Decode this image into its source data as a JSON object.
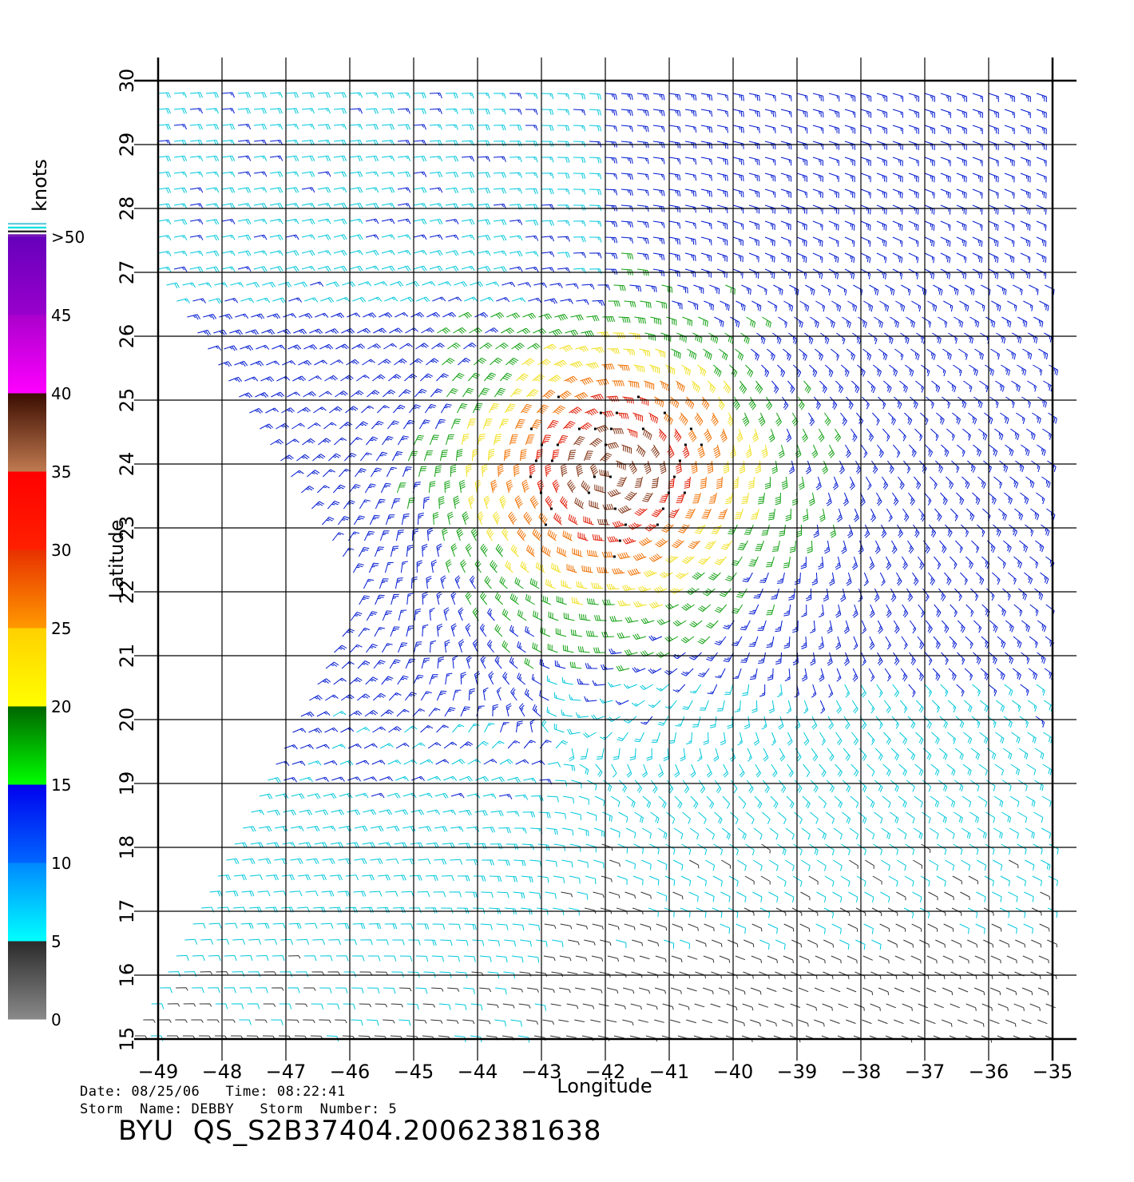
{
  "map": {
    "x_axis_label": "Longitude",
    "y_axis_label": "Latitude",
    "lon_ticks": [
      "-49",
      "-48",
      "-47",
      "-46",
      "-45",
      "-44",
      "-43",
      "-42",
      "-41",
      "-40",
      "-39",
      "-38",
      "-37",
      "-36",
      "-35"
    ],
    "lat_ticks": [
      "15",
      "16",
      "17",
      "18",
      "19",
      "20",
      "21",
      "22",
      "23",
      "24",
      "25",
      "26",
      "27",
      "28",
      "29",
      "30"
    ],
    "lon_range": [
      -49,
      -35
    ],
    "lat_range": [
      15,
      30
    ],
    "grid": true,
    "storm_center": {
      "lon": -41.9,
      "lat": 23.9
    }
  },
  "legend": {
    "unit": "knots",
    "labels": [
      ">50",
      "45",
      "40",
      "35",
      "30",
      "25",
      "20",
      "15",
      "10",
      "5",
      "0"
    ],
    "bands": [
      {
        "from": 0,
        "to": 5,
        "top": "#2a2a2a",
        "bottom": "#8a8a8a"
      },
      {
        "from": 5,
        "to": 10,
        "top": "#0088ff",
        "bottom": "#00ffff"
      },
      {
        "from": 10,
        "to": 15,
        "top": "#0000ee",
        "bottom": "#0066ff"
      },
      {
        "from": 15,
        "to": 20,
        "top": "#006400",
        "bottom": "#00ff00"
      },
      {
        "from": 20,
        "to": 25,
        "top": "#ffd000",
        "bottom": "#ffff00"
      },
      {
        "from": 25,
        "to": 30,
        "top": "#e83000",
        "bottom": "#ff9900"
      },
      {
        "from": 30,
        "to": 35,
        "top": "#ff0000",
        "bottom": "#ff2000"
      },
      {
        "from": 35,
        "to": 40,
        "top": "#3a0c00",
        "bottom": "#c07a50"
      },
      {
        "from": 40,
        "to": 45,
        "top": "#aa00cc",
        "bottom": "#ff00ff"
      },
      {
        "from": 45,
        "to": 50,
        "top": "#6600bb",
        "bottom": "#9900cc"
      }
    ]
  },
  "footer": {
    "date_line": "Date: 08/25/06   Time: 08:22:41",
    "storm_line": "Storm  Name: DEBBY   Storm  Number: 5",
    "file_id": "BYU  QS_S2B37404.20062381638"
  }
}
